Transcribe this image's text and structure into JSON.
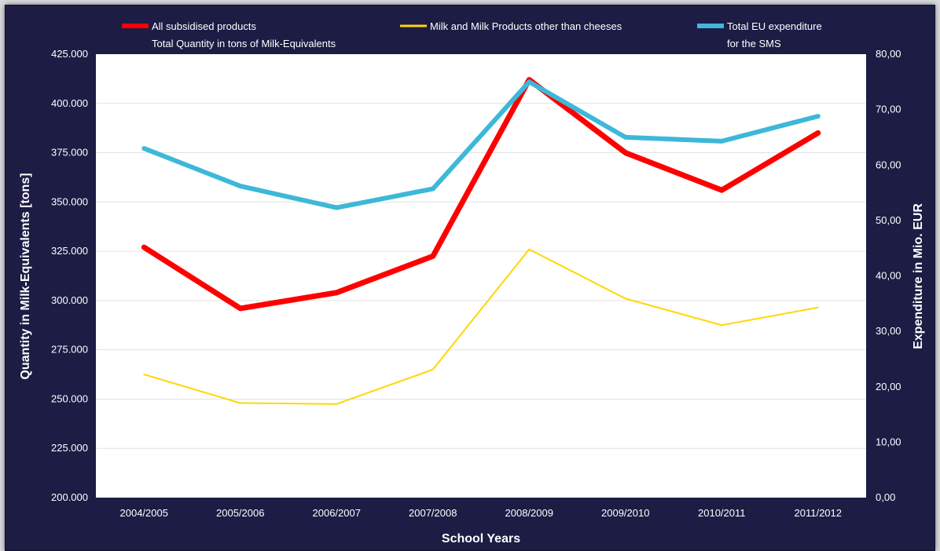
{
  "chart_data": {
    "type": "line",
    "categories": [
      "2004/2005",
      "2005/2006",
      "2006/2007",
      "2007/2008",
      "2008/2009",
      "2009/2010",
      "2010/2011",
      "2011/2012"
    ],
    "xlabel": "School Years",
    "ylabel": "Quantity in Milk-Equivalents [tons]",
    "y2label": "Expenditure in Mio. EUR",
    "ylim": [
      200000,
      425000
    ],
    "y2lim": [
      0,
      80
    ],
    "yticks": [
      "200.000",
      "225.000",
      "250.000",
      "275.000",
      "300.000",
      "325.000",
      "350.000",
      "375.000",
      "400.000",
      "425.000"
    ],
    "y2ticks": [
      "0,00",
      "10,00",
      "20,00",
      "30,00",
      "40,00",
      "50,00",
      "60,00",
      "70,00",
      "80,00"
    ],
    "grid": true,
    "legend_position": "top",
    "series": [
      {
        "name": "All subsidised products",
        "name_line2": "Total Quantity in tons of Milk-Equivalents",
        "axis": "left",
        "color": "#ff0000",
        "values": [
          327000,
          296000,
          304000,
          322500,
          412000,
          375000,
          356000,
          385000
        ]
      },
      {
        "name": "Milk and Milk Products other than cheeses",
        "name_line2": "",
        "axis": "left",
        "color": "#ffd700",
        "values": [
          262500,
          248000,
          247500,
          265000,
          326000,
          301000,
          287500,
          296500
        ]
      },
      {
        "name": "Total EU expenditure",
        "name_line2": "for the SMS",
        "axis": "right",
        "color": "#3db8d8",
        "values": [
          63.0,
          56.2,
          52.3,
          55.7,
          75.0,
          65.0,
          64.3,
          68.8
        ]
      }
    ]
  }
}
